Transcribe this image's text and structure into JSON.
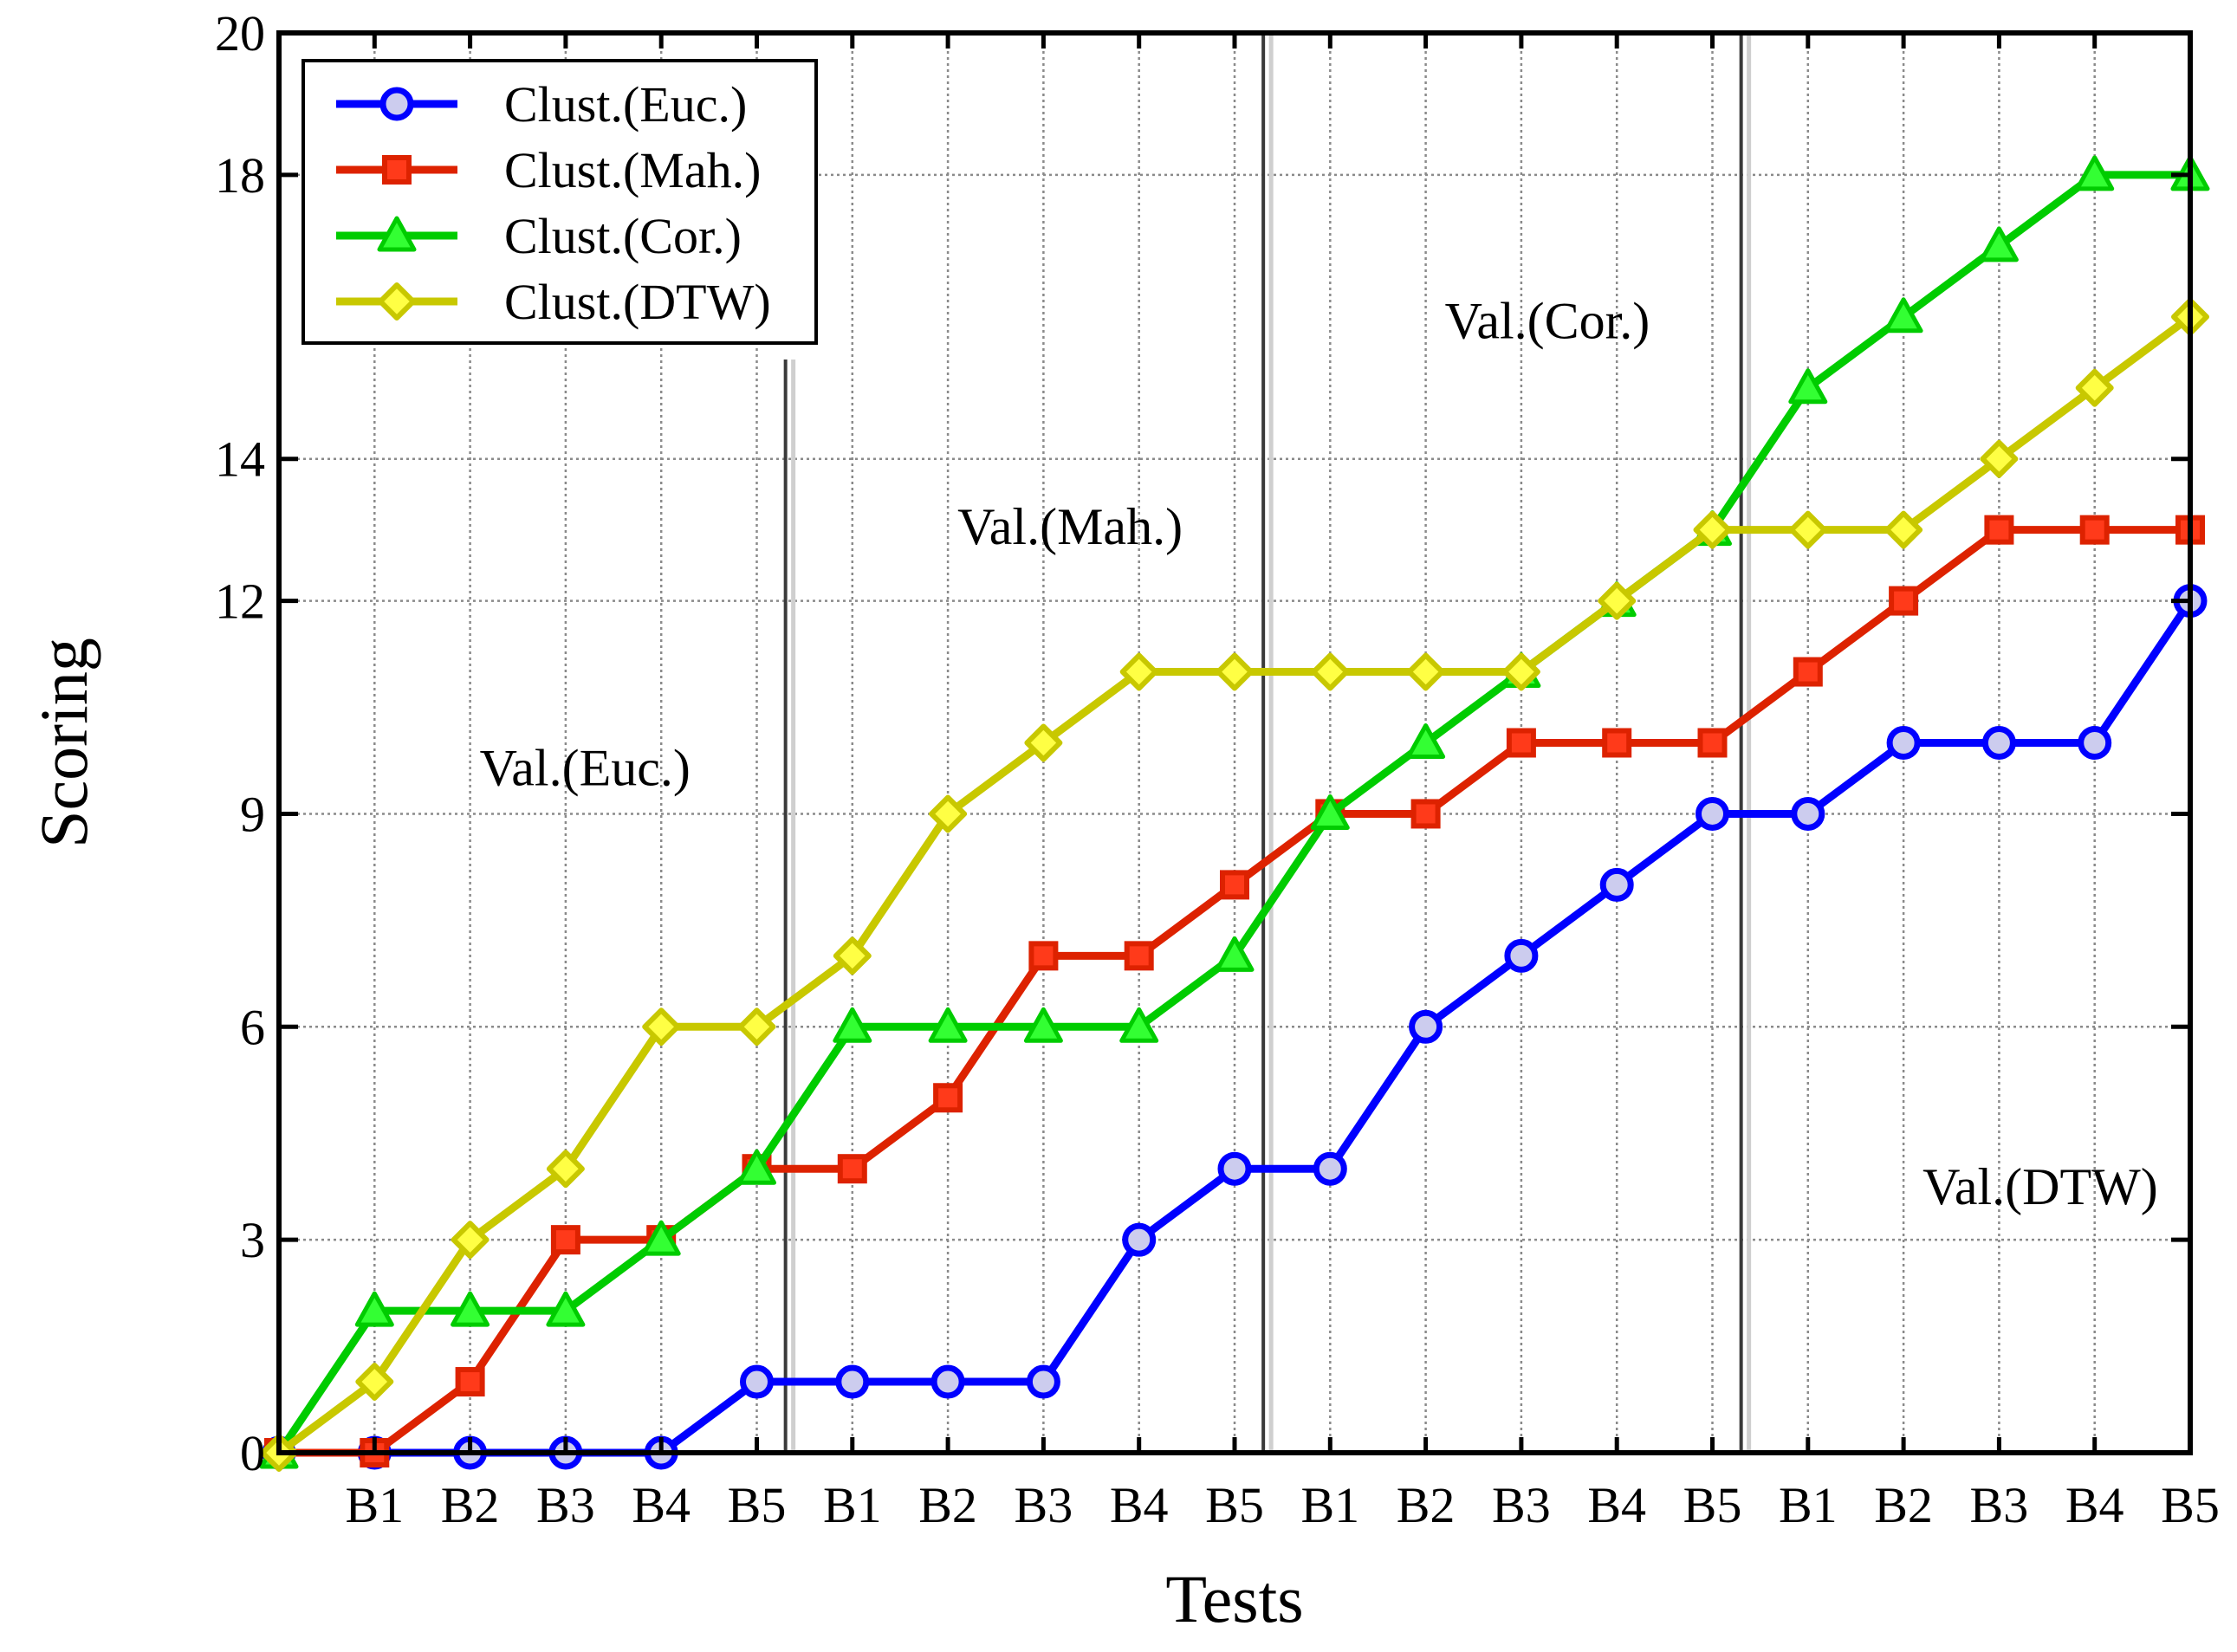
{
  "chart_data": {
    "type": "line",
    "title": "",
    "xlabel": "Tests",
    "ylabel": "Scoring",
    "ylim": [
      0,
      20
    ],
    "yticks": [
      0,
      3,
      6,
      9,
      12,
      14,
      18,
      20
    ],
    "grid": true,
    "legend_position": "top-left",
    "categories": [
      "",
      "B1",
      "B2",
      "B3",
      "B4",
      "B5",
      "B1",
      "B2",
      "B3",
      "B4",
      "B5",
      "B1",
      "B2",
      "B3",
      "B4",
      "B5",
      "B1",
      "B2",
      "B3",
      "B4",
      "B5"
    ],
    "series": [
      {
        "name": "Clust.(Euc.)",
        "color": "#0000ff",
        "marker": "circle",
        "values": [
          0,
          0,
          0,
          0,
          0,
          1,
          1,
          1,
          1,
          3,
          4,
          4,
          6,
          7,
          8,
          9,
          9,
          10,
          10,
          10,
          12
        ]
      },
      {
        "name": "Clust.(Mah.)",
        "color": "#dd2200",
        "marker": "square",
        "values": [
          0,
          0,
          1,
          3,
          3,
          4,
          4,
          5,
          7,
          7,
          8,
          9,
          9,
          10,
          10,
          10,
          11,
          12,
          13,
          13,
          13
        ]
      },
      {
        "name": "Clust.(Cor.)",
        "color": "#00cc00",
        "marker": "triangle",
        "values": [
          0,
          2,
          2,
          2,
          3,
          4,
          6,
          6,
          6,
          6,
          7,
          9,
          10,
          11,
          12,
          13,
          15,
          16,
          17,
          18,
          18
        ]
      },
      {
        "name": "Clust.(DTW)",
        "color": "#c8c800",
        "marker": "diamond",
        "values": [
          0,
          1,
          3,
          4,
          6,
          6,
          7,
          9,
          10,
          11,
          11,
          11,
          11,
          11,
          12,
          13,
          13,
          13,
          14,
          15,
          16
        ]
      }
    ],
    "separators_after_index": [
      5,
      10,
      15
    ],
    "annotations": [
      {
        "text": "Val.(Euc.)",
        "x": 2.1,
        "y": 9.4
      },
      {
        "text": "Val.(Mah.)",
        "x": 7.1,
        "y": 12.8
      },
      {
        "text": "Val.(Cor.)",
        "x": 12.2,
        "y": 15.7
      },
      {
        "text": "Val.(DTW)",
        "x": 17.2,
        "y": 3.5
      }
    ]
  }
}
